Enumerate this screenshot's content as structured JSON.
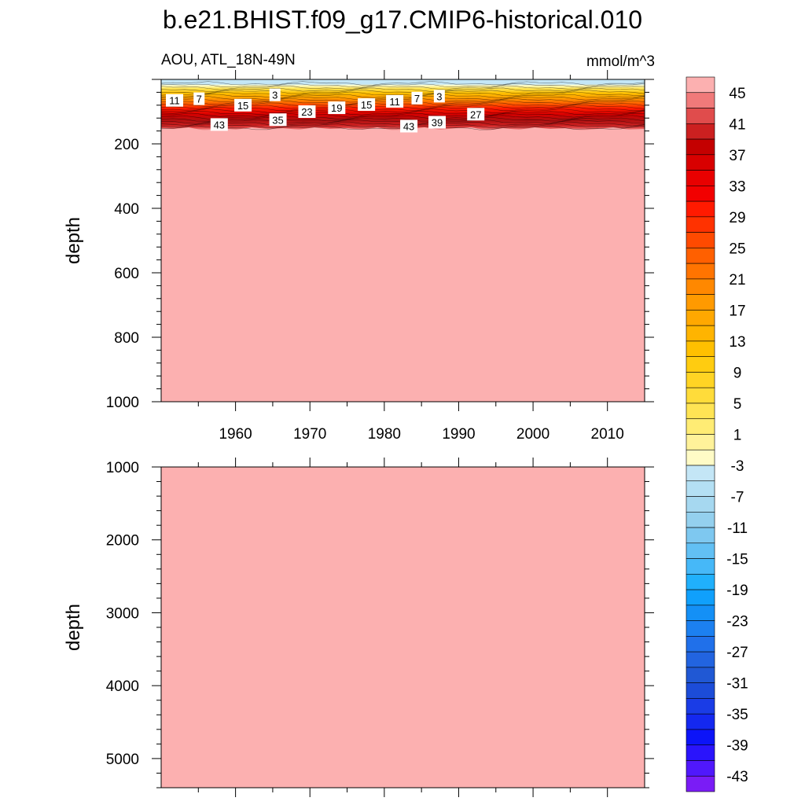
{
  "chart_data": {
    "type": "heatmap",
    "title": "b.e21.BHIST.f09_g17.CMIP6-historical.010",
    "left_label": "AOU, ATL_18N-49N",
    "right_label": "mmol/m^3",
    "panels": [
      {
        "id": "upper",
        "x_range": [
          1950,
          2015
        ],
        "y_range": [
          1000,
          0
        ],
        "x_ticks": [
          1960,
          1970,
          1980,
          1990,
          2000,
          2010
        ],
        "y_ticks": [
          200,
          400,
          600,
          800,
          1000
        ],
        "ylabel": "depth",
        "x_tick_labels_shown": true,
        "surface_layer_depths": [
          0,
          25,
          50,
          75,
          100,
          125,
          150,
          170
        ],
        "surface_layer_values": [
          -3,
          3,
          11,
          19,
          27,
          35,
          43,
          47
        ],
        "deep_value": 47,
        "contour_labels": [
          {
            "text": "11",
            "x": 1951.8,
            "y": 65
          },
          {
            "text": "7",
            "x": 1955.1,
            "y": 60
          },
          {
            "text": "3",
            "x": 1965.3,
            "y": 48
          },
          {
            "text": "15",
            "x": 1961.0,
            "y": 80
          },
          {
            "text": "23",
            "x": 1969.6,
            "y": 100
          },
          {
            "text": "19",
            "x": 1973.6,
            "y": 88
          },
          {
            "text": "15",
            "x": 1977.6,
            "y": 78
          },
          {
            "text": "11",
            "x": 1981.4,
            "y": 68
          },
          {
            "text": "7",
            "x": 1984.4,
            "y": 58
          },
          {
            "text": "3",
            "x": 1987.4,
            "y": 52
          },
          {
            "text": "27",
            "x": 1992.3,
            "y": 108
          },
          {
            "text": "43",
            "x": 1957.8,
            "y": 140
          },
          {
            "text": "35",
            "x": 1965.7,
            "y": 125
          },
          {
            "text": "43",
            "x": 1983.3,
            "y": 145
          },
          {
            "text": "39",
            "x": 1987.1,
            "y": 133
          }
        ]
      },
      {
        "id": "lower",
        "x_range": [
          1950,
          2015
        ],
        "y_range": [
          5400,
          1000
        ],
        "x_ticks": [
          1960,
          1970,
          1980,
          1990,
          2000,
          2010
        ],
        "y_ticks": [
          1000,
          2000,
          3000,
          4000,
          5000
        ],
        "ylabel": "depth",
        "x_tick_labels_shown": false,
        "fill_value": 47
      }
    ],
    "colorbar": {
      "levels": [
        -45,
        -43,
        -41,
        -39,
        -37,
        -35,
        -33,
        -31,
        -29,
        -27,
        -25,
        -23,
        -21,
        -19,
        -17,
        -15,
        -13,
        -11,
        -9,
        -7,
        -5,
        -3,
        -1,
        1,
        3,
        5,
        7,
        9,
        11,
        13,
        15,
        17,
        19,
        21,
        23,
        25,
        27,
        29,
        31,
        33,
        35,
        37,
        39,
        41,
        43,
        45
      ],
      "labels": [
        "45",
        "41",
        "37",
        "33",
        "29",
        "25",
        "21",
        "17",
        "13",
        "9",
        "5",
        "1",
        "-3",
        "-7",
        "-11",
        "-15",
        "-19",
        "-23",
        "-27",
        "-31",
        "-35",
        "-39",
        "-43"
      ],
      "colors_top_to_bottom": [
        "#fcb0b0",
        "#f07a7a",
        "#e04c4c",
        "#cc2020",
        "#c40000",
        "#d80000",
        "#e80000",
        "#f20000",
        "#ff1a00",
        "#ff3200",
        "#ff4a00",
        "#ff6000",
        "#ff7400",
        "#ff8800",
        "#ff9a00",
        "#ffa800",
        "#ffb400",
        "#ffc000",
        "#ffcc10",
        "#ffd424",
        "#ffdc3a",
        "#ffe454",
        "#ffec74",
        "#fff29a",
        "#fffbc6",
        "#c4e6f6",
        "#b4e0f4",
        "#a6d8f0",
        "#94d0ee",
        "#7ec8f0",
        "#62c0f4",
        "#46b8f8",
        "#20b0fc",
        "#10a0fc",
        "#1490f6",
        "#1c80f0",
        "#2070ea",
        "#2264e0",
        "#2058d4",
        "#1c4cd8",
        "#1a3ce6",
        "#1428f0",
        "#0c14f8",
        "#2a14fc",
        "#5018fc",
        "#7a1cf6"
      ]
    }
  }
}
